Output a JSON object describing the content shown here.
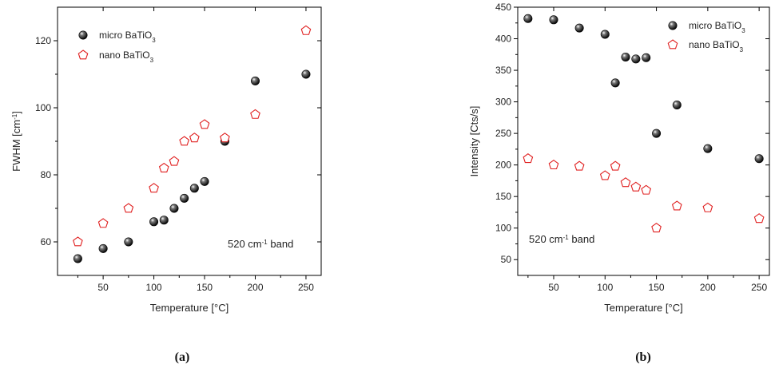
{
  "chart_data": [
    {
      "panel": "(a)",
      "type": "scatter",
      "xlabel": "Temperature [°C]",
      "ylabel": "FWHM  [cm",
      "ylabel_sup": "-1",
      "ylabel_end": "]",
      "xlim": [
        5,
        265
      ],
      "ylim": [
        50,
        130
      ],
      "xticks": [
        50,
        100,
        150,
        200,
        250
      ],
      "yticks": [
        60,
        80,
        100,
        120
      ],
      "annotation": {
        "before": "520 cm",
        "sup": "-1",
        "after": " band"
      },
      "legend_position": "top-left",
      "series": [
        {
          "name": "micro BaTiO",
          "name_sub": "3",
          "marker": "filled-sphere",
          "color": "#000000",
          "x": [
            25,
            50,
            75,
            100,
            110,
            120,
            130,
            140,
            150,
            170,
            200,
            250
          ],
          "y": [
            55,
            58,
            60,
            66,
            66.5,
            70,
            73,
            76,
            78,
            90,
            108,
            110
          ]
        },
        {
          "name": "nano BaTiO",
          "name_sub": "3",
          "marker": "open-pentagon",
          "color": "#e02020",
          "x": [
            25,
            50,
            75,
            100,
            110,
            120,
            130,
            140,
            150,
            170,
            200,
            250
          ],
          "y": [
            60,
            65.5,
            70,
            76,
            82,
            84,
            90,
            91,
            95,
            91,
            98,
            123
          ]
        }
      ]
    },
    {
      "panel": "(b)",
      "type": "scatter",
      "xlabel": "Temperature [°C]",
      "ylabel": "Intensity [Cts/s]",
      "xlim": [
        15,
        260
      ],
      "ylim": [
        25,
        450
      ],
      "xticks": [
        50,
        100,
        150,
        200,
        250
      ],
      "yticks": [
        50,
        100,
        150,
        200,
        250,
        300,
        350,
        400,
        450
      ],
      "annotation": {
        "before": "520 cm",
        "sup": "-1",
        "after": " band"
      },
      "legend_position": "top-right",
      "series": [
        {
          "name": "micro BaTiO",
          "name_sub": "3",
          "marker": "filled-sphere",
          "color": "#000000",
          "x": [
            25,
            50,
            75,
            100,
            110,
            120,
            130,
            140,
            150,
            170,
            200,
            250
          ],
          "y": [
            432,
            430,
            417,
            407,
            330,
            371,
            368,
            370,
            250,
            295,
            226,
            210
          ]
        },
        {
          "name": "nano BaTiO",
          "name_sub": "3",
          "marker": "open-pentagon",
          "color": "#e02020",
          "x": [
            25,
            50,
            75,
            100,
            110,
            120,
            130,
            140,
            150,
            170,
            200,
            250
          ],
          "y": [
            210,
            200,
            198,
            183,
            198,
            172,
            165,
            160,
            100,
            135,
            132,
            115
          ]
        }
      ]
    }
  ]
}
